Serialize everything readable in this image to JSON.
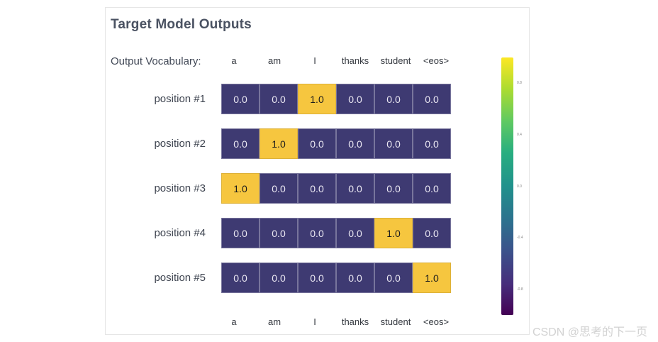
{
  "page": {
    "watermark": "CSDN @思考的下一页"
  },
  "panel": {
    "title": "Target Model Outputs",
    "vocab_label": "Output Vocabulary:"
  },
  "chart_data": {
    "type": "heatmap",
    "title": "Target Model Outputs",
    "columns": [
      "a",
      "am",
      "I",
      "thanks",
      "student",
      "<eos>"
    ],
    "rows": [
      "position #1",
      "position #2",
      "position #3",
      "position #4",
      "position #5"
    ],
    "values": [
      [
        0.0,
        0.0,
        1.0,
        0.0,
        0.0,
        0.0
      ],
      [
        0.0,
        1.0,
        0.0,
        0.0,
        0.0,
        0.0
      ],
      [
        1.0,
        0.0,
        0.0,
        0.0,
        0.0,
        0.0
      ],
      [
        0.0,
        0.0,
        0.0,
        0.0,
        1.0,
        0.0
      ],
      [
        0.0,
        0.0,
        0.0,
        0.0,
        0.0,
        1.0
      ]
    ],
    "value_decimals": 1,
    "grid": false,
    "legend_position": "none",
    "colors": {
      "cell_low": "#3e3a72",
      "cell_high": "#f6c63f",
      "colormap": "viridis"
    },
    "colorbar": {
      "orientation": "vertical",
      "position": "right",
      "range": [
        -1,
        1
      ],
      "ticks": [
        "0.8",
        "0.4",
        "0.0",
        "-0.4",
        "-0.8"
      ]
    }
  }
}
